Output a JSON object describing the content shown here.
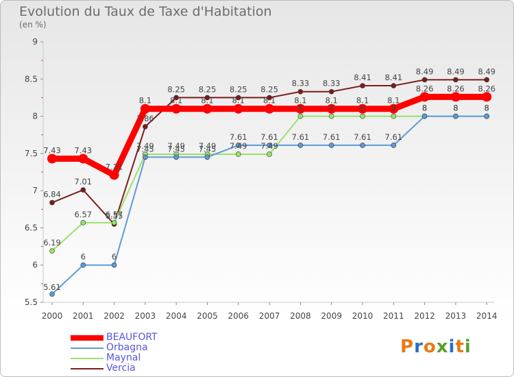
{
  "title": "Evolution du Taux de Taxe d'Habitation",
  "unit_label": "(en %)",
  "logo_text": "Proxiti",
  "logo_colors": [
    "#e87a14",
    "#2a6fbf",
    "#e87a14",
    "#5aa02c",
    "#2a6fbf",
    "#e87a14",
    "#5aa02c"
  ],
  "chart_data": {
    "type": "line",
    "title": "Evolution du Taux de Taxe d'Habitation",
    "ylabel": "(en %)",
    "xlabel": "",
    "ylim": [
      5.5,
      9
    ],
    "yticks": [
      "5.5",
      "6",
      "6.5",
      "7",
      "7.5",
      "8",
      "8.5",
      "9"
    ],
    "categories": [
      "2000",
      "2001",
      "2002",
      "2003",
      "2004",
      "2005",
      "2006",
      "2007",
      "2008",
      "2009",
      "2010",
      "2011",
      "2012",
      "2013",
      "2014"
    ],
    "series": [
      {
        "name": "BEAUFORT",
        "color": "#ff0000",
        "values": [
          7.43,
          7.43,
          7.21,
          8.1,
          8.1,
          8.1,
          8.1,
          8.1,
          8.1,
          8.1,
          8.1,
          8.1,
          8.26,
          8.26,
          8.26
        ],
        "labels": [
          "7.43",
          "7.43",
          "7.21",
          "8.1",
          "8.1",
          "8.1",
          "8.1",
          "8.1",
          "8.1",
          "8.1",
          "8.1",
          "8.1",
          "8.26",
          "8.26",
          "8.26"
        ]
      },
      {
        "name": "Orbagna",
        "color": "#5b9bd5",
        "values": [
          5.61,
          6,
          6,
          7.45,
          7.45,
          7.45,
          7.61,
          7.61,
          7.61,
          7.61,
          7.61,
          7.61,
          8,
          8,
          8
        ],
        "labels": [
          "5.61",
          "6",
          "6",
          "7.45",
          "7.45",
          "7.45",
          "7.61",
          "7.61",
          "7.61",
          "7.61",
          "7.61",
          "7.61",
          "8",
          "8",
          "8"
        ]
      },
      {
        "name": "Maynal",
        "color": "#99e26a",
        "values": [
          6.19,
          6.57,
          6.57,
          7.49,
          7.49,
          7.49,
          7.49,
          7.49,
          8,
          8,
          8,
          8,
          8,
          8,
          8
        ],
        "labels": [
          "6.19",
          "6.57",
          "6.57",
          "7.49",
          "7.49",
          "7.49",
          "7.49",
          "7.49",
          "8",
          "8",
          "8",
          "8",
          "8",
          "8",
          "8"
        ]
      },
      {
        "name": "Vercia",
        "color": "#7b1c1c",
        "values": [
          6.84,
          7.01,
          6.55,
          7.86,
          8.25,
          8.25,
          8.25,
          8.25,
          8.33,
          8.33,
          8.41,
          8.41,
          8.49,
          8.49,
          8.49
        ],
        "labels": [
          "6.84",
          "7.01",
          "6.55",
          "7.86",
          "8.25",
          "8.25",
          "8.25",
          "8.25",
          "8.33",
          "8.33",
          "8.41",
          "8.41",
          "8.49",
          "8.49",
          "8.49"
        ]
      }
    ]
  }
}
